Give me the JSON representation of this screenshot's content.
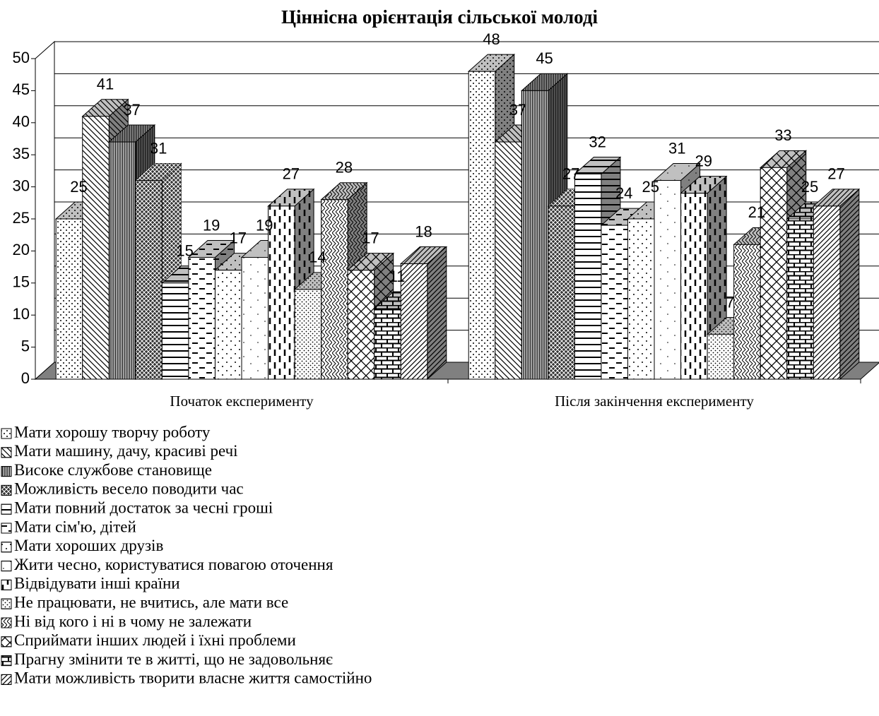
{
  "chart_data": {
    "type": "bar3d",
    "title": "Ціннісна орієнтація сільської молоді",
    "categories": [
      "Початок експерименту",
      "Після закінчення експерименту"
    ],
    "ylim": [
      0,
      50
    ],
    "yticks": [
      0,
      5,
      10,
      15,
      20,
      25,
      30,
      35,
      40,
      45,
      50
    ],
    "grid": true,
    "series": [
      {
        "name": "Мати хорошу творчу роботу",
        "values": [
          25,
          48
        ]
      },
      {
        "name": "Мати машину, дачу, красиві речі",
        "values": [
          41,
          37
        ]
      },
      {
        "name": "Високе службове становище",
        "values": [
          37,
          45
        ]
      },
      {
        "name": "Можливість весело поводити час",
        "values": [
          31,
          27
        ]
      },
      {
        "name": "Мати повний достаток за чесні гроші",
        "values": [
          15,
          32
        ]
      },
      {
        "name": "Мати сім'ю, дітей",
        "values": [
          19,
          24
        ]
      },
      {
        "name": "Мати хороших друзів",
        "values": [
          17,
          25
        ]
      },
      {
        "name": "Жити чесно, користуватися повагою оточення",
        "values": [
          19,
          31
        ]
      },
      {
        "name": "Відвідувати інші країни",
        "values": [
          27,
          29
        ]
      },
      {
        "name": "Не працювати, не вчитись, але мати все",
        "values": [
          14,
          7
        ]
      },
      {
        "name": "Ні від кого і ні в чому не залежати",
        "values": [
          28,
          21
        ]
      },
      {
        "name": "Сприймати інших людей і їхні проблеми",
        "values": [
          17,
          33
        ]
      },
      {
        "name": "Прагну змінити те в житті, що не задовольняє",
        "values": [
          11,
          25
        ]
      },
      {
        "name": "Мати можливість творити власне життя самостійно",
        "values": [
          18,
          27
        ]
      }
    ]
  }
}
